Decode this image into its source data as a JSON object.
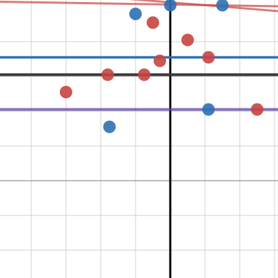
{
  "app": {
    "name": "graphing-calculator"
  },
  "graph": {
    "view": {
      "xmin": -4.9,
      "xmax": 3.1,
      "ymin": -7.8,
      "ymax": 0.2
    },
    "grid": {
      "minor_step": 1,
      "major_step": 5,
      "minor_color": "#d0d0d0",
      "major_color": "#7a7a7a",
      "axis_color": "#000000"
    },
    "colors": {
      "red": "#c74440",
      "blue": "#2d70b3",
      "purple": "#6042a6",
      "black": "#000000"
    }
  },
  "chart_data": {
    "type": "scatter",
    "xlim": [
      -4.9,
      3.1
    ],
    "ylim": [
      -7.8,
      0.2
    ],
    "grid": true,
    "lines": [
      {
        "kind": "horizontal",
        "y": -1.45,
        "color": "#2d70b3",
        "width": 3.5,
        "opacity": 1.0
      },
      {
        "kind": "horizontal",
        "y": -1.95,
        "color": "#3a3a3a",
        "width": 4,
        "opacity": 1.0
      },
      {
        "kind": "horizontal",
        "y": -2.95,
        "color": "#6042a6",
        "width": 4,
        "opacity": 0.75
      },
      {
        "kind": "segment",
        "x1": -4.9,
        "y1": 0.15,
        "x2": 3.1,
        "y2": 0.02,
        "color": "#c74440",
        "width": 3,
        "opacity": 0.7
      },
      {
        "kind": "segment",
        "x1": -3.9,
        "y1": 0.45,
        "x2": 3.1,
        "y2": -0.12,
        "color": "#c74440",
        "width": 3,
        "opacity": 0.7
      }
    ],
    "series": [
      {
        "color": "#c74440",
        "points": [
          [
            -0.5,
            -0.45
          ],
          [
            0.5,
            -0.95
          ],
          [
            1.1,
            -1.45
          ],
          [
            -0.3,
            -1.55
          ],
          [
            -1.8,
            -1.95
          ],
          [
            -0.75,
            -1.95
          ],
          [
            -3.0,
            -2.45
          ],
          [
            2.5,
            -2.95
          ]
        ]
      },
      {
        "color": "#2d70b3",
        "points": [
          [
            -1.0,
            -0.2
          ],
          [
            0.0,
            0.05
          ],
          [
            1.5,
            0.05
          ],
          [
            1.1,
            -2.95
          ],
          [
            -1.75,
            -3.45
          ]
        ]
      }
    ]
  }
}
